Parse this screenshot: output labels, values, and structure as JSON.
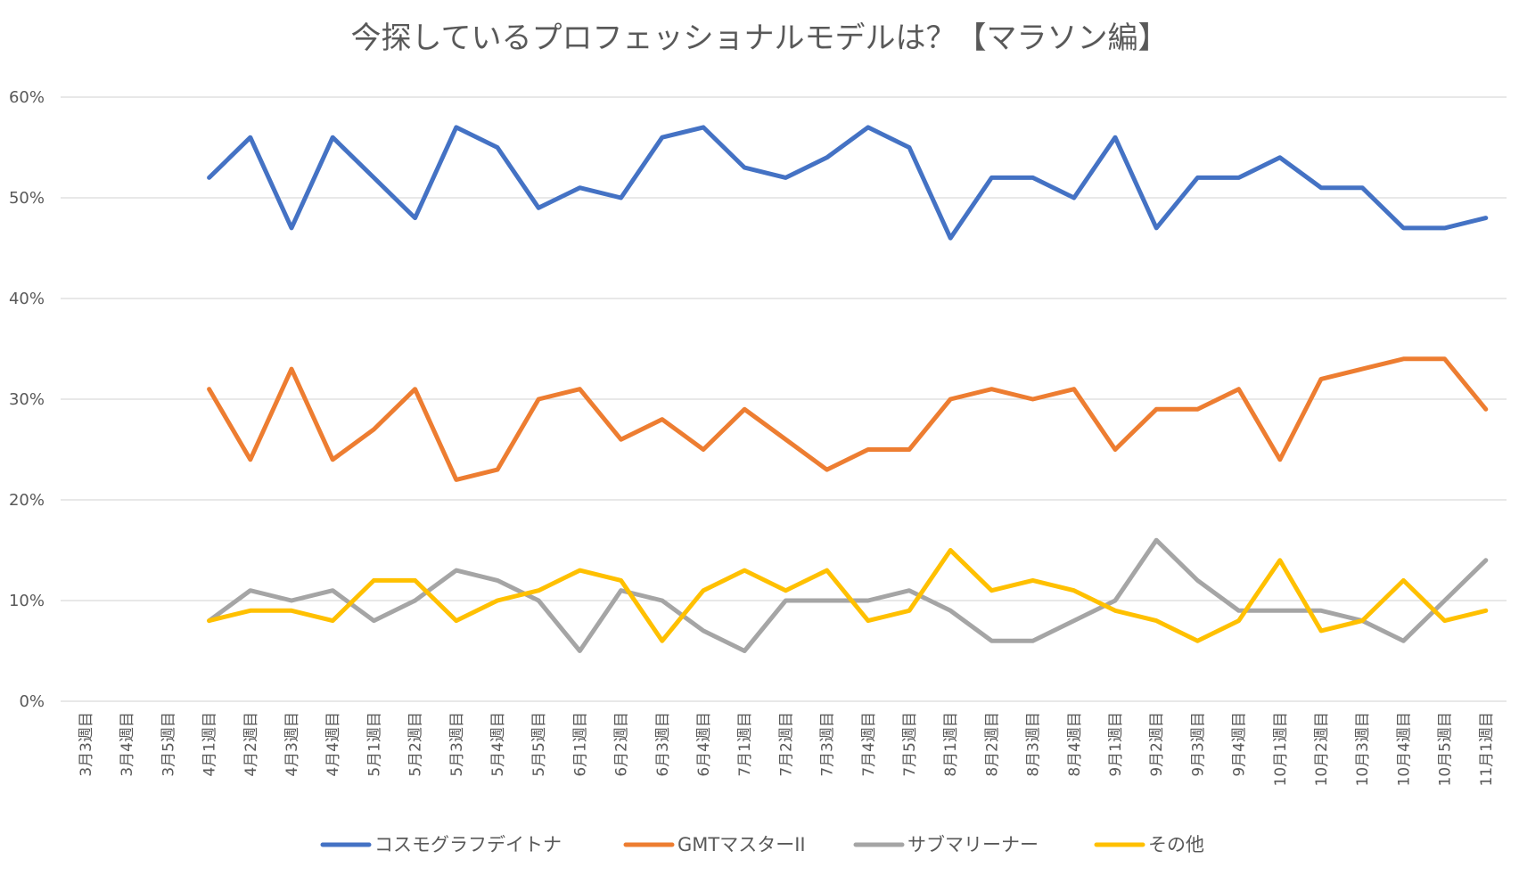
{
  "chart_data": {
    "type": "line",
    "title": "今探しているプロフェッショナルモデルは？【マラソン編】",
    "xlabel": "",
    "ylabel": "",
    "ylim": [
      0,
      60
    ],
    "yticks": [
      0,
      10,
      20,
      30,
      40,
      50,
      60
    ],
    "ytick_labels": [
      "0%",
      "10%",
      "20%",
      "30%",
      "40%",
      "50%",
      "60%"
    ],
    "grid": true,
    "legend_position": "bottom",
    "categories": [
      "3月3週目",
      "3月4週目",
      "3月5週目",
      "4月1週目",
      "4月2週目",
      "4月3週目",
      "4月4週目",
      "5月1週目",
      "5月2週目",
      "5月3週目",
      "5月4週目",
      "5月5週目",
      "6月1週目",
      "6月2週目",
      "6月3週目",
      "6月4週目",
      "7月1週目",
      "7月2週目",
      "7月3週目",
      "7月4週目",
      "7月5週目",
      "8月1週目",
      "8月2週目",
      "8月3週目",
      "8月4週目",
      "9月1週目",
      "9月2週目",
      "9月3週目",
      "9月4週目",
      "10月1週目",
      "10月2週目",
      "10月3週目",
      "10月4週目",
      "10月5週目",
      "11月1週目"
    ],
    "series": [
      {
        "name": "コスモグラフデイトナ",
        "color": "#4472c4",
        "values": [
          null,
          null,
          null,
          52,
          56,
          47,
          56,
          52,
          48,
          57,
          55,
          49,
          51,
          50,
          56,
          57,
          53,
          52,
          54,
          57,
          55,
          46,
          52,
          52,
          50,
          56,
          47,
          52,
          52,
          54,
          51,
          51,
          47,
          47,
          48
        ]
      },
      {
        "name": "GMTマスターII",
        "color": "#ed7d31",
        "values": [
          null,
          null,
          null,
          31,
          24,
          33,
          24,
          27,
          31,
          22,
          23,
          30,
          31,
          26,
          28,
          25,
          29,
          26,
          23,
          25,
          25,
          30,
          31,
          30,
          31,
          25,
          29,
          29,
          31,
          24,
          32,
          33,
          34,
          34,
          29
        ]
      },
      {
        "name": "サブマリーナー",
        "color": "#a5a5a5",
        "values": [
          null,
          null,
          null,
          8,
          11,
          10,
          11,
          8,
          10,
          13,
          12,
          10,
          5,
          11,
          10,
          7,
          5,
          10,
          10,
          10,
          11,
          9,
          6,
          6,
          8,
          10,
          16,
          12,
          9,
          9,
          9,
          8,
          6,
          10,
          14
        ]
      },
      {
        "name": "その他",
        "color": "#ffc000",
        "values": [
          null,
          null,
          null,
          8,
          9,
          9,
          8,
          12,
          12,
          8,
          10,
          11,
          13,
          12,
          6,
          11,
          13,
          11,
          13,
          8,
          9,
          15,
          11,
          12,
          11,
          9,
          8,
          6,
          8,
          14,
          7,
          8,
          12,
          8,
          9
        ]
      }
    ]
  }
}
